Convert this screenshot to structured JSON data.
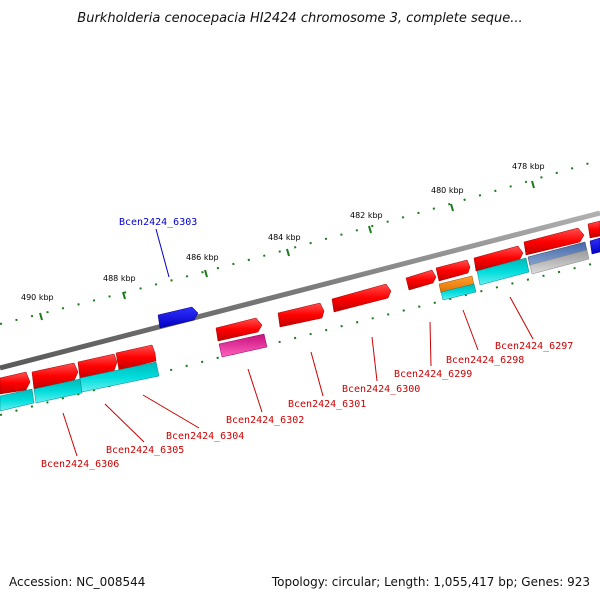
{
  "title": "Burkholderia cenocepacia HI2424 chromosome 3, complete seque...",
  "footer": {
    "accession": "Accession: NC_008544",
    "summary": "Topology: circular; Length: 1,055,417 bp; Genes: 923"
  },
  "ticks": {
    "major": [
      "478 kbp",
      "480 kbp",
      "482 kbp",
      "484 kbp",
      "486 kbp",
      "488 kbp",
      "490 kbp"
    ]
  },
  "colors": {
    "backbone": "#8a8a8a",
    "forward": "#ff0000",
    "reverse_cds": "#00cccc",
    "tick": "#1a7a1a",
    "label_red": "#cc0000",
    "label_blue": "#0000cc",
    "blue_feature": "#0000ee",
    "magenta_feature": "#ee1aa0",
    "orange_feature": "#ff8c00",
    "grey_feature": "#b8b8b8",
    "steel_feature": "#5577aa"
  },
  "genes": [
    {
      "id": "Bcen2424_6297",
      "color": "red"
    },
    {
      "id": "Bcen2424_6298",
      "color": "red"
    },
    {
      "id": "Bcen2424_6299",
      "color": "red"
    },
    {
      "id": "Bcen2424_6300",
      "color": "red"
    },
    {
      "id": "Bcen2424_6301",
      "color": "red"
    },
    {
      "id": "Bcen2424_6302",
      "color": "red"
    },
    {
      "id": "Bcen2424_6303",
      "color": "blue"
    },
    {
      "id": "Bcen2424_6304",
      "color": "red"
    },
    {
      "id": "Bcen2424_6305",
      "color": "red"
    },
    {
      "id": "Bcen2424_6306",
      "color": "red"
    }
  ]
}
